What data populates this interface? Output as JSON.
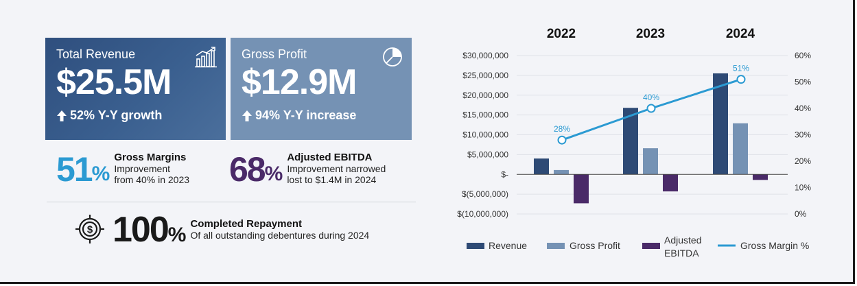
{
  "cards": [
    {
      "title": "Total Revenue",
      "value": "$25.5M",
      "sub": "52% Y-Y growth",
      "icon": "bar-chart-growth-icon"
    },
    {
      "title": "Gross Profit",
      "value": "$12.9M",
      "sub": "94% Y-Y increase",
      "icon": "pie-chart-icon"
    }
  ],
  "stats": {
    "gross_margins": {
      "number": "51",
      "pct": "%",
      "heading": "Gross Margins",
      "line1": "Improvement",
      "line2": "from 40% in 2023"
    },
    "ebitda": {
      "number": "68",
      "pct": "%",
      "heading": "Adjusted EBITDA",
      "line1": "Improvement narrowed",
      "line2": "lost to $1.4M in 2024"
    },
    "repayment": {
      "number": "100",
      "pct": "%",
      "heading": "Completed Repayment",
      "line1": "Of all outstanding debentures during 2024",
      "icon": "target-dollar-icon"
    }
  },
  "colors": {
    "revenue": "#2e4a75",
    "gross_profit": "#7592b4",
    "ebitda": "#4a2a68",
    "margin": "#2b9ad2",
    "blue_accent": "#2b9ad2",
    "purple_accent": "#4a2a68"
  },
  "chart_data": {
    "type": "bar",
    "categories": [
      "2022",
      "2023",
      "2024"
    ],
    "series": [
      {
        "name": "Revenue",
        "values": [
          4000000,
          16800000,
          25500000
        ]
      },
      {
        "name": "Gross Profit",
        "values": [
          1100000,
          6600000,
          12900000
        ]
      },
      {
        "name": "Adjusted EBITDA",
        "values": [
          -7300000,
          -4300000,
          -1400000
        ]
      }
    ],
    "line_series": {
      "name": "Gross Margin %",
      "values": [
        28,
        40,
        51
      ],
      "labels": [
        "28%",
        "40%",
        "51%"
      ]
    },
    "y_left": {
      "min": -10000000,
      "max": 30000000,
      "ticks": [
        30000000,
        25000000,
        20000000,
        15000000,
        10000000,
        5000000,
        0,
        -5000000,
        -10000000
      ],
      "tick_labels": [
        "$30,000,000",
        "$25,000,000",
        "$20,000,000",
        "$15,000,000",
        "$10,000,000",
        "$5,000,000",
        "$-",
        "$(5,000,000)",
        "$(10,000,000)"
      ]
    },
    "y_right": {
      "min": 0,
      "max": 60,
      "ticks": [
        60,
        50,
        40,
        30,
        20,
        10,
        0
      ],
      "tick_labels": [
        "60%",
        "50%",
        "40%",
        "30%",
        "20%",
        "10%",
        "0%"
      ]
    },
    "legend": {
      "placement": "bottom",
      "items": [
        "Revenue",
        "Gross Profit",
        "Adjusted",
        "EBITDA",
        "Gross Margin %"
      ]
    },
    "grid": true
  }
}
